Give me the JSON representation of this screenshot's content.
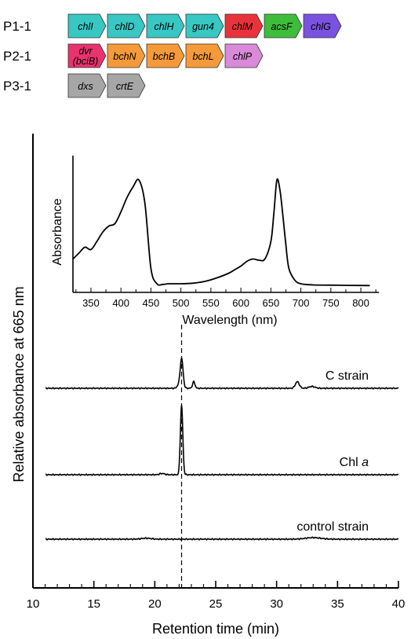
{
  "operons": [
    {
      "name": "P1-1",
      "genes": [
        {
          "label": "chlI",
          "color": "#38c7c2"
        },
        {
          "label": "chlD",
          "color": "#38c7c2"
        },
        {
          "label": "chlH",
          "color": "#38c7c2"
        },
        {
          "label": "gun4",
          "color": "#38c7c2"
        },
        {
          "label": "chlM",
          "color": "#e8333b"
        },
        {
          "label": "acsF",
          "color": "#3ebd3b"
        },
        {
          "label": "chlG",
          "color": "#7b52e0"
        }
      ]
    },
    {
      "name": "P2-1",
      "genes": [
        {
          "label": "dvr",
          "label2": "(bciB)",
          "color": "#e8336e"
        },
        {
          "label": "bchN",
          "color": "#f59a3a"
        },
        {
          "label": "bchB",
          "color": "#f59a3a"
        },
        {
          "label": "bchL",
          "color": "#f59a3a"
        },
        {
          "label": "chlP",
          "color": "#d98ad8"
        }
      ]
    },
    {
      "name": "P3-1",
      "genes": [
        {
          "label": "dxs",
          "color": "#a6a6a6"
        },
        {
          "label": "crtE",
          "color": "#a6a6a6"
        }
      ]
    }
  ],
  "chart_data": [
    {
      "type": "line",
      "xlabel": "Retention time (min)",
      "ylabel": "Relative absorbance at 665 nm",
      "xlim": [
        10,
        40
      ],
      "xticks": [
        10,
        15,
        20,
        25,
        30,
        35,
        40
      ],
      "minor_tick_step": 1,
      "marker_line_x": 22.2,
      "series": [
        {
          "name": "C strain",
          "baseline": 0.0,
          "peaks": [
            {
              "x": 22.2,
              "h": 1.0,
              "w": 0.12
            },
            {
              "x": 23.2,
              "h": 0.22,
              "w": 0.1
            },
            {
              "x": 31.7,
              "h": 0.22,
              "w": 0.16
            },
            {
              "x": 21.9,
              "h": 0.08,
              "w": 0.1
            },
            {
              "x": 32.9,
              "h": 0.06,
              "w": 0.25
            }
          ]
        },
        {
          "name": "Chl a",
          "baseline": 0.0,
          "peaks": [
            {
              "x": 22.2,
              "h": 2.2,
              "w": 0.1
            },
            {
              "x": 20.6,
              "h": 0.04,
              "w": 0.2
            }
          ]
        },
        {
          "name": "control strain",
          "baseline": 0.0,
          "peaks": [
            {
              "x": 19.3,
              "h": 0.03,
              "w": 0.4
            },
            {
              "x": 33.0,
              "h": 0.05,
              "w": 0.6
            }
          ]
        }
      ]
    },
    {
      "type": "line",
      "xlabel": "Wavelength (nm)",
      "ylabel": "Absorbance",
      "xlim": [
        320,
        830
      ],
      "xticks": [
        350,
        400,
        450,
        500,
        550,
        600,
        650,
        700,
        750,
        800
      ],
      "x": [
        320,
        330,
        340,
        350,
        360,
        370,
        380,
        390,
        400,
        410,
        420,
        430,
        440,
        450,
        460,
        470,
        480,
        500,
        520,
        540,
        560,
        580,
        590,
        600,
        610,
        620,
        630,
        640,
        650,
        655,
        660,
        665,
        670,
        675,
        680,
        690,
        700,
        720,
        750,
        780,
        815
      ],
      "y": [
        0.23,
        0.28,
        0.33,
        0.31,
        0.38,
        0.46,
        0.51,
        0.53,
        0.63,
        0.75,
        0.84,
        0.9,
        0.7,
        0.15,
        0.02,
        0.015,
        0.02,
        0.02,
        0.025,
        0.04,
        0.07,
        0.11,
        0.14,
        0.17,
        0.21,
        0.23,
        0.22,
        0.23,
        0.38,
        0.62,
        0.9,
        0.82,
        0.6,
        0.35,
        0.15,
        0.05,
        0.02,
        0.01,
        0.008,
        0.006,
        0.005
      ]
    }
  ]
}
